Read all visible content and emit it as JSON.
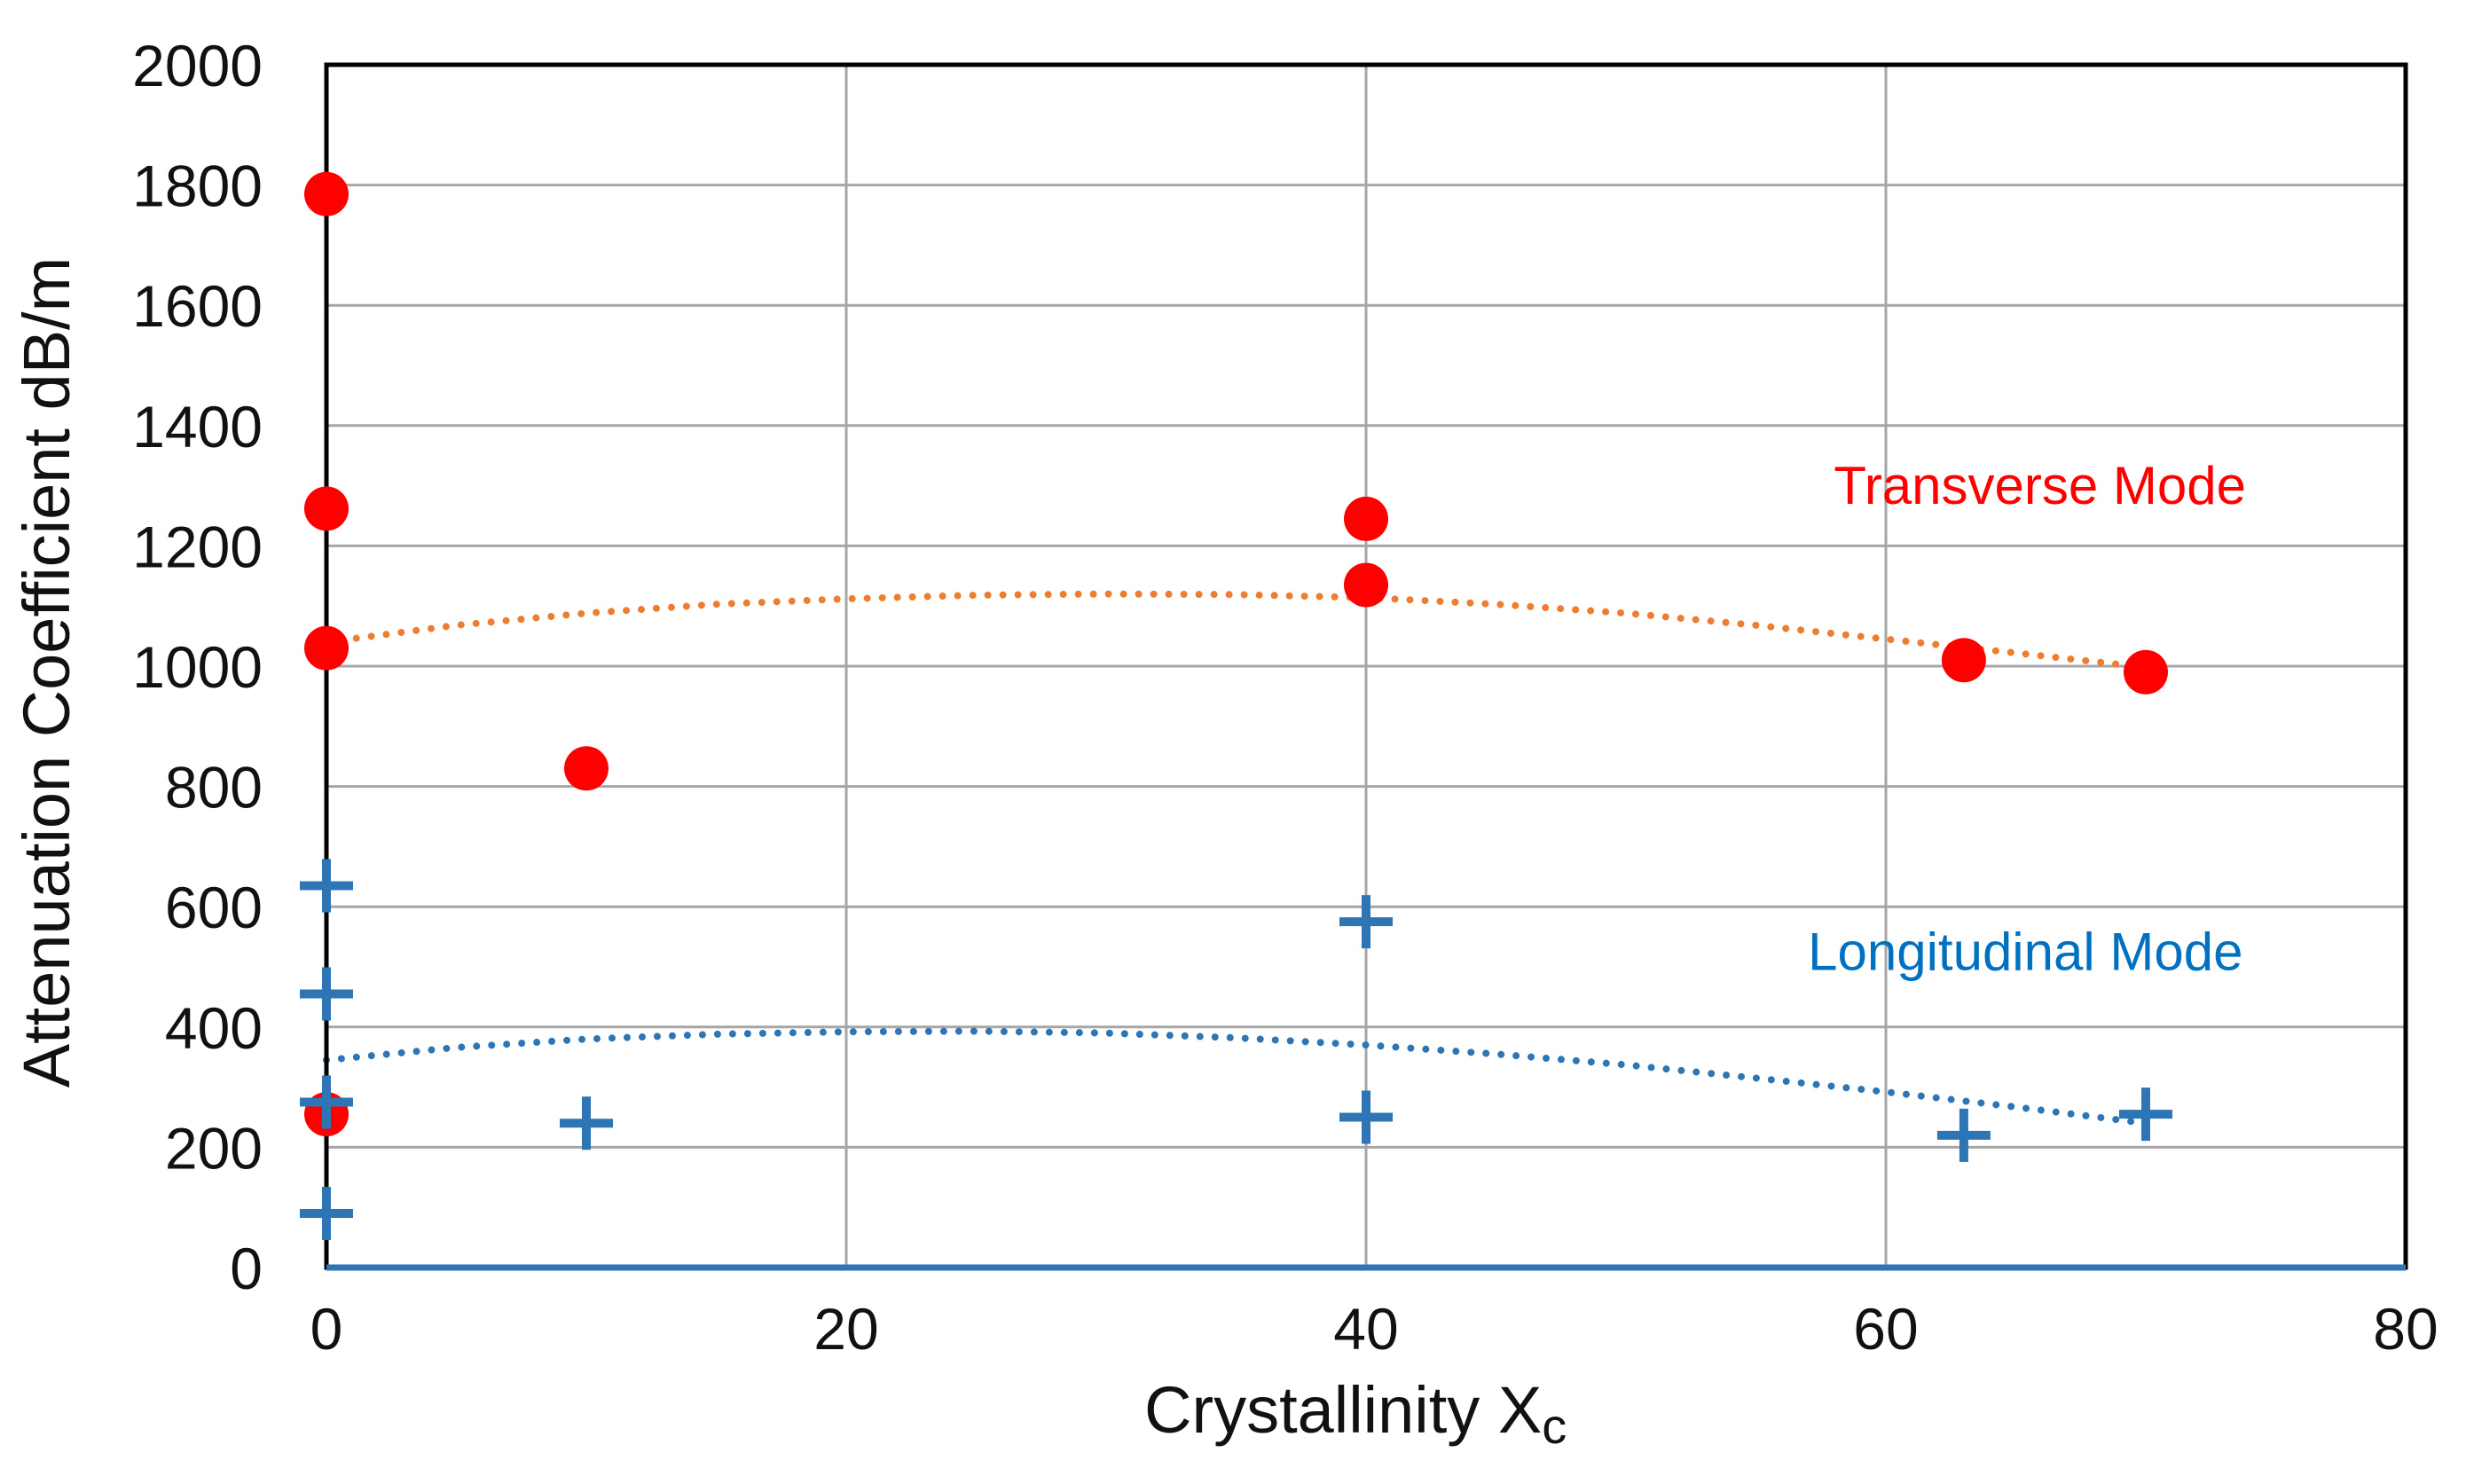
{
  "chart_data": {
    "type": "scatter",
    "title": "",
    "xlabel": "Crystallinity  X",
    "xlabel_subscript": "c",
    "ylabel": "Attenuation Coefficient  dB/m",
    "xlim": [
      0,
      80
    ],
    "ylim": [
      0,
      2000
    ],
    "xticks": [
      0,
      20,
      40,
      60,
      80
    ],
    "yticks": [
      0,
      200,
      400,
      600,
      800,
      1000,
      1200,
      1400,
      1600,
      1800,
      2000
    ],
    "grid": true,
    "series": [
      {
        "name": "Transverse Mode",
        "marker": "circle",
        "color": "#ff0000",
        "points": [
          {
            "x": 0,
            "y": 1785
          },
          {
            "x": 0,
            "y": 1262
          },
          {
            "x": 0,
            "y": 1030
          },
          {
            "x": 0,
            "y": 255
          },
          {
            "x": 10,
            "y": 830
          },
          {
            "x": 40,
            "y": 1245
          },
          {
            "x": 40,
            "y": 1135
          },
          {
            "x": 63,
            "y": 1010
          },
          {
            "x": 70,
            "y": 990
          }
        ],
        "trend": {
          "color": "#ed7d31",
          "points": [
            {
              "x": 0,
              "y": 1040
            },
            {
              "x": 5,
              "y": 1068
            },
            {
              "x": 10,
              "y": 1088
            },
            {
              "x": 15,
              "y": 1103
            },
            {
              "x": 20,
              "y": 1112
            },
            {
              "x": 25,
              "y": 1118
            },
            {
              "x": 30,
              "y": 1120
            },
            {
              "x": 35,
              "y": 1119
            },
            {
              "x": 40,
              "y": 1114
            },
            {
              "x": 45,
              "y": 1103
            },
            {
              "x": 50,
              "y": 1088
            },
            {
              "x": 55,
              "y": 1068
            },
            {
              "x": 60,
              "y": 1045
            },
            {
              "x": 65,
              "y": 1022
            },
            {
              "x": 70,
              "y": 998
            }
          ]
        }
      },
      {
        "name": "Longitudinal Mode",
        "marker": "plus",
        "color": "#2e75b6",
        "points": [
          {
            "x": 0,
            "y": 635
          },
          {
            "x": 0,
            "y": 455
          },
          {
            "x": 0,
            "y": 275
          },
          {
            "x": 0,
            "y": 90
          },
          {
            "x": 10,
            "y": 240
          },
          {
            "x": 40,
            "y": 575
          },
          {
            "x": 40,
            "y": 250
          },
          {
            "x": 63,
            "y": 220
          },
          {
            "x": 70,
            "y": 255
          }
        ],
        "trend": {
          "color": "#2e75b6",
          "points": [
            {
              "x": 0,
              "y": 345
            },
            {
              "x": 5,
              "y": 366
            },
            {
              "x": 10,
              "y": 380
            },
            {
              "x": 15,
              "y": 388
            },
            {
              "x": 20,
              "y": 392
            },
            {
              "x": 25,
              "y": 393
            },
            {
              "x": 30,
              "y": 390
            },
            {
              "x": 35,
              "y": 382
            },
            {
              "x": 40,
              "y": 370
            },
            {
              "x": 45,
              "y": 355
            },
            {
              "x": 50,
              "y": 337
            },
            {
              "x": 55,
              "y": 315
            },
            {
              "x": 60,
              "y": 292
            },
            {
              "x": 65,
              "y": 267
            },
            {
              "x": 70,
              "y": 240
            }
          ]
        }
      }
    ],
    "annotations": [
      {
        "text": "Transverse Mode",
        "x": 58,
        "y": 1270,
        "color": "#ff0000"
      },
      {
        "text": "Longitudinal Mode",
        "x": 57,
        "y": 495,
        "color": "#0070c0"
      }
    ]
  }
}
